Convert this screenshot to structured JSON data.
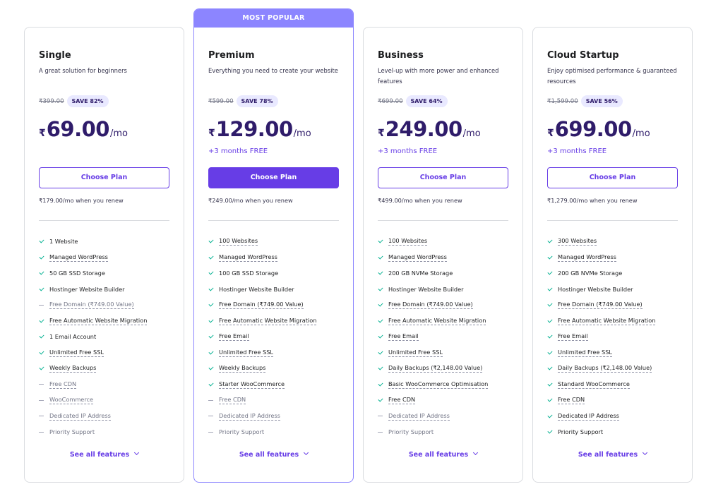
{
  "colors": {
    "accent": "#673de6",
    "ribbon": "#8c85ff",
    "check": "#00b090"
  },
  "plans": [
    {
      "name": "Single",
      "description": "A great solution for beginners",
      "old_price": "₹399.00",
      "save": "SAVE 82%",
      "currency": "₹",
      "amount": "69.00",
      "period": "/mo",
      "bonus": "",
      "choose_label": "Choose Plan",
      "renew": "₹179.00/mo when you renew",
      "see_all": "See all features",
      "features": [
        {
          "text": "1 Website",
          "on": true,
          "dotted": false
        },
        {
          "text": "Managed WordPress",
          "on": true,
          "dotted": true
        },
        {
          "text": "50 GB SSD Storage",
          "on": true,
          "dotted": false
        },
        {
          "text": "Hostinger Website Builder",
          "on": true,
          "dotted": false
        },
        {
          "text": "Free Domain (₹749.00 Value)",
          "on": false,
          "dotted": true
        },
        {
          "text": "Free Automatic Website Migration",
          "on": true,
          "dotted": true
        },
        {
          "text": "1 Email Account",
          "on": true,
          "dotted": false
        },
        {
          "text": "Unlimited Free SSL",
          "on": true,
          "dotted": true
        },
        {
          "text": "Weekly Backups",
          "on": true,
          "dotted": true
        },
        {
          "text": "Free CDN",
          "on": false,
          "dotted": true
        },
        {
          "text": "WooCommerce",
          "on": false,
          "dotted": true
        },
        {
          "text": "Dedicated IP Address",
          "on": false,
          "dotted": true
        },
        {
          "text": "Priority Support",
          "on": false,
          "dotted": false
        }
      ]
    },
    {
      "name": "Premium",
      "ribbon": "MOST POPULAR",
      "description": "Everything you need to create your website",
      "old_price": "₹599.00",
      "save": "SAVE 78%",
      "currency": "₹",
      "amount": "129.00",
      "period": "/mo",
      "bonus": "+3 months FREE",
      "choose_label": "Choose Plan",
      "renew": "₹249.00/mo when you renew",
      "see_all": "See all features",
      "features": [
        {
          "text": "100 Websites",
          "on": true,
          "dotted": true
        },
        {
          "text": "Managed WordPress",
          "on": true,
          "dotted": true
        },
        {
          "text": "100 GB SSD Storage",
          "on": true,
          "dotted": false
        },
        {
          "text": "Hostinger Website Builder",
          "on": true,
          "dotted": false
        },
        {
          "text": "Free Domain (₹749.00 Value)",
          "on": true,
          "dotted": true
        },
        {
          "text": "Free Automatic Website Migration",
          "on": true,
          "dotted": true
        },
        {
          "text": "Free Email",
          "on": true,
          "dotted": true
        },
        {
          "text": "Unlimited Free SSL",
          "on": true,
          "dotted": true
        },
        {
          "text": "Weekly Backups",
          "on": true,
          "dotted": true
        },
        {
          "text": "Starter WooCommerce",
          "on": true,
          "dotted": true
        },
        {
          "text": "Free CDN",
          "on": false,
          "dotted": true
        },
        {
          "text": "Dedicated IP Address",
          "on": false,
          "dotted": true
        },
        {
          "text": "Priority Support",
          "on": false,
          "dotted": false
        }
      ]
    },
    {
      "name": "Business",
      "description": "Level-up with more power and enhanced features",
      "old_price": "₹699.00",
      "save": "SAVE 64%",
      "currency": "₹",
      "amount": "249.00",
      "period": "/mo",
      "bonus": "+3 months FREE",
      "choose_label": "Choose Plan",
      "renew": "₹499.00/mo when you renew",
      "see_all": "See all features",
      "features": [
        {
          "text": "100 Websites",
          "on": true,
          "dotted": true
        },
        {
          "text": "Managed WordPress",
          "on": true,
          "dotted": true
        },
        {
          "text": "200 GB NVMe Storage",
          "on": true,
          "dotted": false
        },
        {
          "text": "Hostinger Website Builder",
          "on": true,
          "dotted": false
        },
        {
          "text": "Free Domain (₹749.00 Value)",
          "on": true,
          "dotted": true
        },
        {
          "text": "Free Automatic Website Migration",
          "on": true,
          "dotted": true
        },
        {
          "text": "Free Email",
          "on": true,
          "dotted": true
        },
        {
          "text": "Unlimited Free SSL",
          "on": true,
          "dotted": true
        },
        {
          "text": "Daily Backups (₹2,148.00 Value)",
          "on": true,
          "dotted": true
        },
        {
          "text": "Basic WooCommerce Optimisation",
          "on": true,
          "dotted": true
        },
        {
          "text": "Free CDN",
          "on": true,
          "dotted": true
        },
        {
          "text": "Dedicated IP Address",
          "on": false,
          "dotted": true
        },
        {
          "text": "Priority Support",
          "on": false,
          "dotted": false
        }
      ]
    },
    {
      "name": "Cloud Startup",
      "description": "Enjoy optimised performance & guaranteed resources",
      "old_price": "₹1,599.00",
      "save": "SAVE 56%",
      "currency": "₹",
      "amount": "699.00",
      "period": "/mo",
      "bonus": "+3 months FREE",
      "choose_label": "Choose Plan",
      "renew": "₹1,279.00/mo when you renew",
      "see_all": "See all features",
      "features": [
        {
          "text": "300 Websites",
          "on": true,
          "dotted": true
        },
        {
          "text": "Managed WordPress",
          "on": true,
          "dotted": true
        },
        {
          "text": "200 GB NVMe Storage",
          "on": true,
          "dotted": false
        },
        {
          "text": "Hostinger Website Builder",
          "on": true,
          "dotted": false
        },
        {
          "text": "Free Domain (₹749.00 Value)",
          "on": true,
          "dotted": true
        },
        {
          "text": "Free Automatic Website Migration",
          "on": true,
          "dotted": true
        },
        {
          "text": "Free Email",
          "on": true,
          "dotted": true
        },
        {
          "text": "Unlimited Free SSL",
          "on": true,
          "dotted": true
        },
        {
          "text": "Daily Backups (₹2,148.00 Value)",
          "on": true,
          "dotted": true
        },
        {
          "text": "Standard WooCommerce",
          "on": true,
          "dotted": true
        },
        {
          "text": "Free CDN",
          "on": true,
          "dotted": true
        },
        {
          "text": "Dedicated IP Address",
          "on": true,
          "dotted": true
        },
        {
          "text": "Priority Support",
          "on": true,
          "dotted": false
        }
      ]
    }
  ]
}
